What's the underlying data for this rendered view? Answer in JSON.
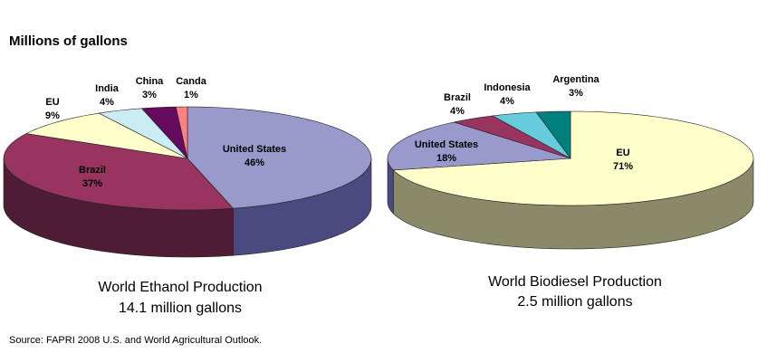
{
  "header": {
    "units_label": "Millions of gallons"
  },
  "footer": {
    "source": "Source: FAPRI 2008 U.S. and World Agricultural Outlook."
  },
  "chart_data": [
    {
      "type": "pie",
      "title": "World Ethanol Production",
      "subtitle": "14.1 million gallons",
      "slices": [
        {
          "label": "United States",
          "value": 46,
          "value_label": "46%",
          "color": "#9999cc",
          "side": "#4a4a80"
        },
        {
          "label": "Brazil",
          "value": 37,
          "value_label": "37%",
          "color": "#99335f",
          "side": "#4e1c34"
        },
        {
          "label": "EU",
          "value": 9,
          "value_label": "9%",
          "color": "#ffffcc",
          "side": "#808066"
        },
        {
          "label": "India",
          "value": 4,
          "value_label": "4%",
          "color": "#ccecf4",
          "side": "#667a80"
        },
        {
          "label": "China",
          "value": 3,
          "value_label": "3%",
          "color": "#660a5e",
          "side": "#330530"
        },
        {
          "label": "Canda",
          "value": 1,
          "value_label": "1%",
          "color": "#ff8080",
          "side": "#804040"
        }
      ]
    },
    {
      "type": "pie",
      "title": "World Biodiesel Production",
      "subtitle": "2.5 million gallons",
      "slices": [
        {
          "label": "EU",
          "value": 71,
          "value_label": "71%",
          "color": "#ffffcc",
          "side": "#8a8a6a"
        },
        {
          "label": "United States",
          "value": 18,
          "value_label": "18%",
          "color": "#9999cc",
          "side": "#4a4a80"
        },
        {
          "label": "Brazil",
          "value": 4,
          "value_label": "4%",
          "color": "#99335f",
          "side": "#4e1c34"
        },
        {
          "label": "Indonesia",
          "value": 4,
          "value_label": "4%",
          "color": "#66ccdd",
          "side": "#336670"
        },
        {
          "label": "Argentina",
          "value": 3,
          "value_label": "3%",
          "color": "#007f7f",
          "side": "#004040"
        }
      ]
    }
  ]
}
